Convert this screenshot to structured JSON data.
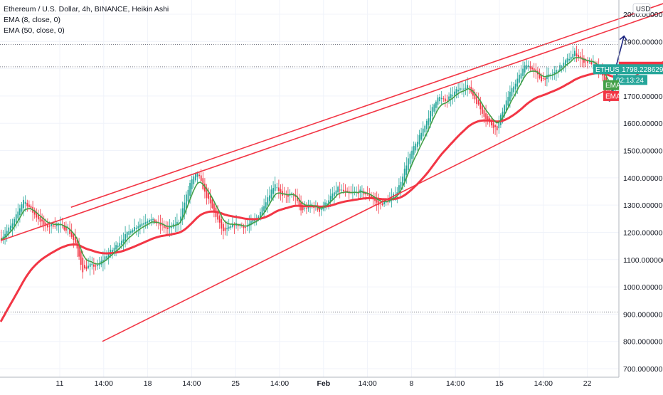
{
  "chart_data": {
    "type": "candlestick",
    "title": "Ethereum / U.S. Dollar, 4h, BINANCE, Heikin Ashi",
    "indicators": [
      {
        "name": "EMA (8, close, 0)",
        "short": "EMA",
        "color": "#43a047"
      },
      {
        "name": "EMA (50, close, 0)",
        "short": "EMA",
        "color": "#f23645"
      }
    ],
    "y_unit": "USD",
    "ylim": [
      680,
      2060
    ],
    "y_ticks": [
      "700.000000",
      "800.000000",
      "900.000000",
      "1000.000000",
      "1100.000000",
      "1200.000000",
      "1300.000000",
      "1400.000000",
      "1500.000000",
      "1600.000000",
      "1700.000000",
      "1800.000000",
      "1900.000000",
      "2000.000000"
    ],
    "x_ticks": [
      "11",
      "14:00",
      "18",
      "14:00",
      "25",
      "14:00",
      "Feb",
      "14:00",
      "8",
      "14:00",
      "15",
      "14:00",
      "22"
    ],
    "bold_x_ticks": [
      "Feb"
    ],
    "price_tags": [
      {
        "label": "1807.434566",
        "value": 1807.43,
        "color": "#f23645"
      },
      {
        "label": "ETHUSD",
        "value": 1798.23,
        "price": "1798.228629",
        "color": "#26a69a",
        "countdown": "02:13:24"
      }
    ],
    "horizontal_levels": [
      1889,
      1807,
      908
    ],
    "colors": {
      "up": "#26a69a",
      "down": "#f23645",
      "channel": "#f23645",
      "arrow": "#1a237e",
      "dotted": "#787b86"
    },
    "closes_keypoints": [
      [
        0,
        1180
      ],
      [
        6,
        1230
      ],
      [
        12,
        1320
      ],
      [
        18,
        1265
      ],
      [
        24,
        1220
      ],
      [
        30,
        1230
      ],
      [
        36,
        1210
      ],
      [
        40,
        1160
      ],
      [
        44,
        1060
      ],
      [
        48,
        1080
      ],
      [
        52,
        1075
      ],
      [
        56,
        1110
      ],
      [
        62,
        1150
      ],
      [
        70,
        1210
      ],
      [
        80,
        1250
      ],
      [
        90,
        1210
      ],
      [
        96,
        1240
      ],
      [
        102,
        1380
      ],
      [
        106,
        1420
      ],
      [
        110,
        1345
      ],
      [
        116,
        1260
      ],
      [
        120,
        1200
      ],
      [
        126,
        1230
      ],
      [
        132,
        1220
      ],
      [
        138,
        1250
      ],
      [
        144,
        1330
      ],
      [
        148,
        1380
      ],
      [
        152,
        1330
      ],
      [
        158,
        1340
      ],
      [
        162,
        1280
      ],
      [
        168,
        1300
      ],
      [
        172,
        1280
      ],
      [
        178,
        1330
      ],
      [
        182,
        1360
      ],
      [
        188,
        1340
      ],
      [
        194,
        1350
      ],
      [
        200,
        1330
      ],
      [
        204,
        1300
      ],
      [
        210,
        1320
      ],
      [
        214,
        1350
      ],
      [
        220,
        1470
      ],
      [
        226,
        1550
      ],
      [
        232,
        1640
      ],
      [
        236,
        1700
      ],
      [
        240,
        1680
      ],
      [
        246,
        1720
      ],
      [
        252,
        1740
      ],
      [
        256,
        1690
      ],
      [
        260,
        1640
      ],
      [
        264,
        1600
      ],
      [
        268,
        1580
      ],
      [
        272,
        1670
      ],
      [
        278,
        1750
      ],
      [
        284,
        1820
      ],
      [
        288,
        1790
      ],
      [
        292,
        1760
      ],
      [
        298,
        1780
      ],
      [
        304,
        1820
      ],
      [
        310,
        1860
      ],
      [
        314,
        1830
      ],
      [
        320,
        1820
      ],
      [
        326,
        1760
      ],
      [
        329,
        1700
      ],
      [
        334,
        1765
      ]
    ],
    "channel_lines": [
      {
        "x1": 38,
        "y1": 1292,
        "x2": 380,
        "y2": 2090
      },
      {
        "x1": 0,
        "y1": 1170,
        "x2": 380,
        "y2": 2060
      },
      {
        "x1": 55,
        "y1": 800,
        "x2": 380,
        "y2": 1900
      }
    ],
    "bars_total": 430
  }
}
